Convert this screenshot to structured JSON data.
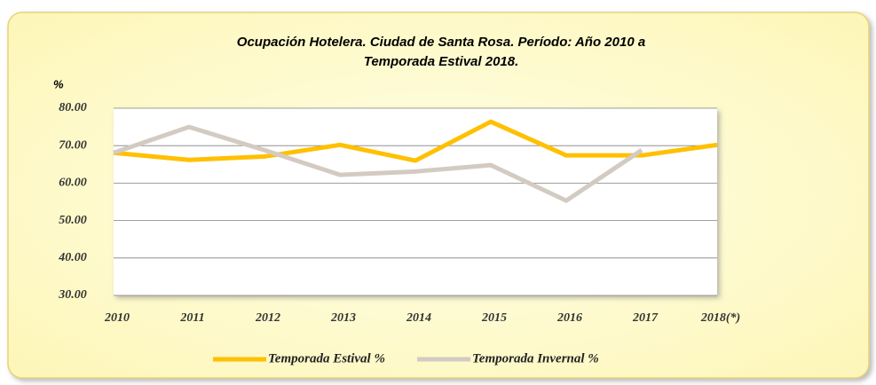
{
  "chart_data": {
    "type": "line",
    "title": [
      "Ocupación Hotelera. Ciudad de Santa Rosa. Período: Año 2010  a",
      "Temporada Estival 2018."
    ],
    "y_label": "%",
    "categories": [
      "2010",
      "2011",
      "2012",
      "2013",
      "2014",
      "2015",
      "2016",
      "2017",
      "2018(*)"
    ],
    "series": [
      {
        "name": "Temporada Estival %",
        "color": "#ffc000",
        "values": [
          68.1,
          66.2,
          67.1,
          70.2,
          66.0,
          76.4,
          67.4,
          67.4,
          70.2
        ]
      },
      {
        "name": "Temporada Invernal %",
        "color": "#d3cbc2",
        "values": [
          68.1,
          75.0,
          68.8,
          62.2,
          63.1,
          64.8,
          55.3,
          68.8,
          null
        ]
      }
    ],
    "ylim": [
      30,
      80
    ],
    "yticks": [
      {
        "value": 30,
        "label": "30.00"
      },
      {
        "value": 40,
        "label": "40.00"
      },
      {
        "value": 50,
        "label": "50.00"
      },
      {
        "value": 60,
        "label": "60.00"
      },
      {
        "value": 70,
        "label": "70.00"
      },
      {
        "value": 80,
        "label": "80.00"
      }
    ],
    "grid": true,
    "legend": "bottom"
  }
}
